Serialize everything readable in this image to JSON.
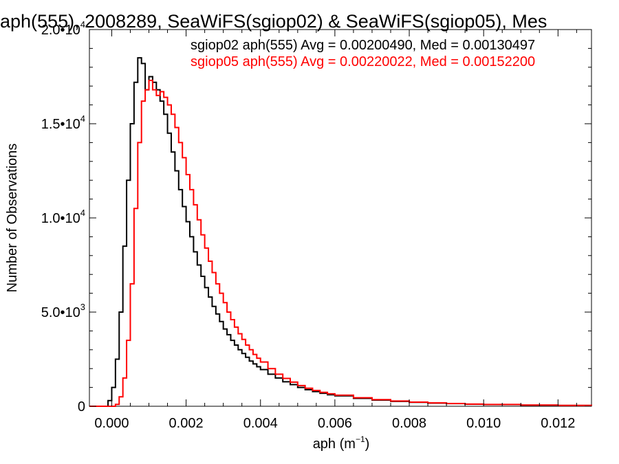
{
  "chart_data": {
    "type": "histogram",
    "title": "aph(555), 2008289, SeaWiFS(sgiop02) & SeaWiFS(sgiop05), Mes",
    "xlabel": "aph (m",
    "xlabel_sup": "−1",
    "xlabel_close": ")",
    "ylabel": "Number of Observations",
    "xlim": [
      -0.0006,
      0.0129
    ],
    "ylim": [
      0,
      20000
    ],
    "x_ticks": [
      0.0,
      0.002,
      0.004,
      0.006,
      0.008,
      0.01,
      0.012
    ],
    "x_tick_labels": [
      "0.000",
      "0.002",
      "0.004",
      "0.006",
      "0.008",
      "0.010",
      "0.012"
    ],
    "y_ticks": [
      0,
      5000,
      10000,
      15000,
      20000
    ],
    "y_tick_labels": [
      {
        "mant": "0",
        "exp": ""
      },
      {
        "mant": "5.0•10",
        "exp": "3"
      },
      {
        "mant": "1.0•10",
        "exp": "4"
      },
      {
        "mant": "1.5•10",
        "exp": "4"
      },
      {
        "mant": "2.0•10",
        "exp": "4"
      }
    ],
    "grid": false,
    "legend_position": "top-right",
    "series": [
      {
        "name": "sgiop02",
        "color": "#000000",
        "legend": "sgiop02 aph(555) Avg = 0.00200490, Med = 0.00130497",
        "points": [
          [
            -0.0006,
            0
          ],
          [
            -0.0002,
            0
          ],
          [
            -0.0001,
            300
          ],
          [
            0.0,
            1000
          ],
          [
            0.0001,
            2500
          ],
          [
            0.0002,
            5000
          ],
          [
            0.0003,
            8500
          ],
          [
            0.0004,
            12000
          ],
          [
            0.0005,
            15000
          ],
          [
            0.0006,
            17200
          ],
          [
            0.0007,
            18500
          ],
          [
            0.0008,
            18200
          ],
          [
            0.0009,
            16800
          ],
          [
            0.001,
            17500
          ],
          [
            0.0011,
            17200
          ],
          [
            0.0012,
            16800
          ],
          [
            0.0013,
            16200
          ],
          [
            0.0014,
            15500
          ],
          [
            0.0015,
            14500
          ],
          [
            0.0016,
            13500
          ],
          [
            0.0017,
            12500
          ],
          [
            0.0018,
            11500
          ],
          [
            0.0019,
            10600
          ],
          [
            0.002,
            9800
          ],
          [
            0.0021,
            9000
          ],
          [
            0.0022,
            8200
          ],
          [
            0.0023,
            7500
          ],
          [
            0.0024,
            6900
          ],
          [
            0.0025,
            6300
          ],
          [
            0.0026,
            5800
          ],
          [
            0.0027,
            5300
          ],
          [
            0.0028,
            4900
          ],
          [
            0.0029,
            4500
          ],
          [
            0.003,
            4100
          ],
          [
            0.0031,
            3800
          ],
          [
            0.0032,
            3500
          ],
          [
            0.0033,
            3250
          ],
          [
            0.0034,
            3000
          ],
          [
            0.0035,
            2800
          ],
          [
            0.0036,
            2600
          ],
          [
            0.0037,
            2400
          ],
          [
            0.0038,
            2250
          ],
          [
            0.0039,
            2100
          ],
          [
            0.004,
            1950
          ],
          [
            0.0042,
            1700
          ],
          [
            0.0044,
            1500
          ],
          [
            0.0046,
            1300
          ],
          [
            0.0048,
            1150
          ],
          [
            0.005,
            1000
          ],
          [
            0.0052,
            880
          ],
          [
            0.0054,
            780
          ],
          [
            0.0056,
            690
          ],
          [
            0.0058,
            610
          ],
          [
            0.006,
            550
          ],
          [
            0.0065,
            420
          ],
          [
            0.007,
            330
          ],
          [
            0.0075,
            260
          ],
          [
            0.008,
            210
          ],
          [
            0.0085,
            170
          ],
          [
            0.009,
            140
          ],
          [
            0.0095,
            110
          ],
          [
            0.01,
            90
          ],
          [
            0.011,
            60
          ],
          [
            0.012,
            40
          ],
          [
            0.0129,
            30
          ]
        ]
      },
      {
        "name": "sgiop05",
        "color": "#ff0000",
        "legend": "sgiop05 aph(555) Avg = 0.00220022, Med = 0.00152200",
        "points": [
          [
            -0.0006,
            0
          ],
          [
            0.0,
            0
          ],
          [
            0.0001,
            100
          ],
          [
            0.0002,
            500
          ],
          [
            0.0003,
            1500
          ],
          [
            0.0004,
            3500
          ],
          [
            0.0005,
            6500
          ],
          [
            0.0006,
            10500
          ],
          [
            0.0007,
            14000
          ],
          [
            0.0008,
            16200
          ],
          [
            0.0009,
            16800
          ],
          [
            0.001,
            17300
          ],
          [
            0.0011,
            16800
          ],
          [
            0.0012,
            16500
          ],
          [
            0.0013,
            16700
          ],
          [
            0.0014,
            16400
          ],
          [
            0.0015,
            16000
          ],
          [
            0.0016,
            15500
          ],
          [
            0.0017,
            14800
          ],
          [
            0.0018,
            14000
          ],
          [
            0.0019,
            13200
          ],
          [
            0.002,
            12300
          ],
          [
            0.0021,
            11500
          ],
          [
            0.0022,
            10700
          ],
          [
            0.0023,
            9900
          ],
          [
            0.0024,
            9100
          ],
          [
            0.0025,
            8400
          ],
          [
            0.0026,
            7700
          ],
          [
            0.0027,
            7100
          ],
          [
            0.0028,
            6500
          ],
          [
            0.0029,
            6000
          ],
          [
            0.003,
            5500
          ],
          [
            0.0031,
            5000
          ],
          [
            0.0032,
            4600
          ],
          [
            0.0033,
            4200
          ],
          [
            0.0034,
            3850
          ],
          [
            0.0035,
            3550
          ],
          [
            0.0036,
            3250
          ],
          [
            0.0037,
            3000
          ],
          [
            0.0038,
            2750
          ],
          [
            0.0039,
            2550
          ],
          [
            0.004,
            2350
          ],
          [
            0.0042,
            2000
          ],
          [
            0.0044,
            1700
          ],
          [
            0.0046,
            1480
          ],
          [
            0.0048,
            1280
          ],
          [
            0.005,
            1100
          ],
          [
            0.0052,
            960
          ],
          [
            0.0054,
            840
          ],
          [
            0.0056,
            740
          ],
          [
            0.0058,
            660
          ],
          [
            0.006,
            590
          ],
          [
            0.0065,
            450
          ],
          [
            0.007,
            350
          ],
          [
            0.0075,
            280
          ],
          [
            0.008,
            220
          ],
          [
            0.0085,
            180
          ],
          [
            0.009,
            145
          ],
          [
            0.0095,
            115
          ],
          [
            0.01,
            95
          ],
          [
            0.011,
            65
          ],
          [
            0.012,
            45
          ],
          [
            0.0129,
            35
          ]
        ]
      }
    ]
  }
}
